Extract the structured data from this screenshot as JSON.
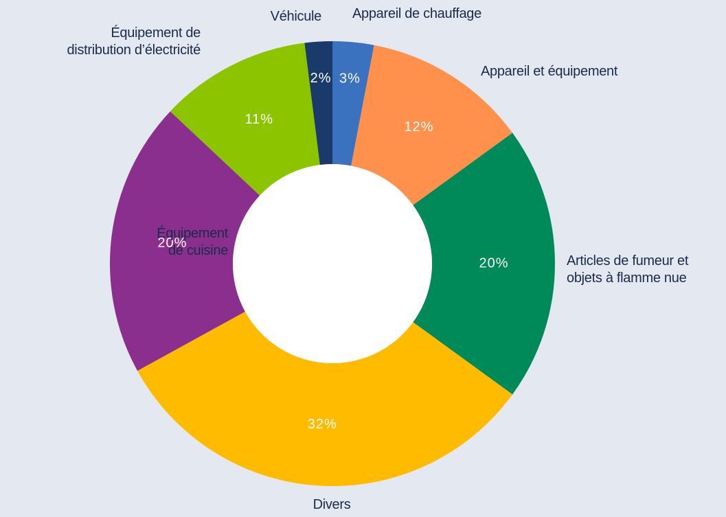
{
  "chart_data": {
    "type": "donut",
    "categories": [
      "Appareil de chauffage",
      "Appareil et équipement",
      "Articles de fumeur et\nobjets à flamme nue",
      "Divers",
      "Équipement\nde cuisine",
      "Équipement de\ndistribution d’électricité",
      "Véhicule"
    ],
    "values": [
      3,
      12,
      20,
      32,
      20,
      11,
      2
    ],
    "value_labels": [
      "3%",
      "12%",
      "20%",
      "32%",
      "20%",
      "11%",
      "2%"
    ],
    "colors": [
      "#3a72c0",
      "#ff914d",
      "#008a5a",
      "#ffbb00",
      "#8b2f8f",
      "#8cc400",
      "#1a3a6b"
    ]
  }
}
